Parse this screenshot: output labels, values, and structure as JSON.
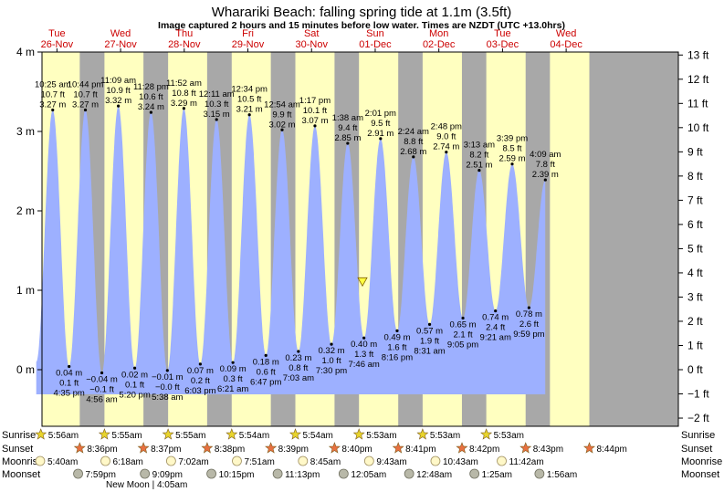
{
  "title": "Wharariki Beach: falling  spring tide at 1.1m (3.5ft)",
  "subtitle": "Image captured 2 hours and 15 minutes before low water. Times are NZDT (UTC +13.0hrs)",
  "chart_data": {
    "type": "area",
    "y_unit_left": "m",
    "y_unit_right": "ft",
    "ylim_m": [
      -0.5,
      4.0
    ],
    "left_ticks": [
      "4 m",
      "3 m",
      "2 m",
      "1 m",
      "0 m"
    ],
    "right_ticks": [
      "13 ft",
      "12 ft",
      "11 ft",
      "10 ft",
      "9 ft",
      "8 ft",
      "7 ft",
      "6 ft",
      "5 ft",
      "4 ft",
      "3 ft",
      "2 ft",
      "1 ft",
      "0 ft",
      "−1 ft",
      "−2 ft"
    ],
    "days": [
      {
        "dow": "Tue",
        "date": "26-Nov"
      },
      {
        "dow": "Wed",
        "date": "27-Nov"
      },
      {
        "dow": "Thu",
        "date": "28-Nov"
      },
      {
        "dow": "Fri",
        "date": "29-Nov"
      },
      {
        "dow": "Sat",
        "date": "30-Nov"
      },
      {
        "dow": "Sun",
        "date": "01-Dec"
      },
      {
        "dow": "Mon",
        "date": "02-Dec"
      },
      {
        "dow": "Tue",
        "date": "03-Dec"
      },
      {
        "dow": "Wed",
        "date": "04-Dec"
      }
    ],
    "current_level_m": 1.1,
    "tides": [
      {
        "type": "high",
        "time": "10:25 am",
        "ft": "10.7 ft",
        "m": 3.27,
        "m_label": "3.27 m"
      },
      {
        "type": "low",
        "time": "4:35 pm",
        "ft": "0.1 ft",
        "m": 0.04,
        "m_label": "0.04 m"
      },
      {
        "type": "high",
        "time": "10:44 pm",
        "ft": "10.7 ft",
        "m": 3.27,
        "m_label": "3.27 m"
      },
      {
        "type": "low",
        "time": "4:56 am",
        "ft": "−0.1 ft",
        "m": -0.04,
        "m_label": "−0.04 m"
      },
      {
        "type": "high",
        "time": "11:09 am",
        "ft": "10.9 ft",
        "m": 3.32,
        "m_label": "3.32 m"
      },
      {
        "type": "low",
        "time": "5:20 pm",
        "ft": "0.1 ft",
        "m": 0.02,
        "m_label": "0.02 m"
      },
      {
        "type": "high",
        "time": "11:28 pm",
        "ft": "10.6 ft",
        "m": 3.24,
        "m_label": "3.24 m"
      },
      {
        "type": "low",
        "time": "5:38 am",
        "ft": "−0.0 ft",
        "m": -0.01,
        "m_label": "−0.01 m"
      },
      {
        "type": "high",
        "time": "11:52 am",
        "ft": "10.8 ft",
        "m": 3.29,
        "m_label": "3.29 m"
      },
      {
        "type": "low",
        "time": "6:03 pm",
        "ft": "0.2 ft",
        "m": 0.07,
        "m_label": "0.07 m"
      },
      {
        "type": "high",
        "time": "12:11 am",
        "ft": "10.3 ft",
        "m": 3.15,
        "m_label": "3.15 m"
      },
      {
        "type": "low",
        "time": "6:21 am",
        "ft": "0.3 ft",
        "m": 0.09,
        "m_label": "0.09 m"
      },
      {
        "type": "high",
        "time": "12:34 pm",
        "ft": "10.5 ft",
        "m": 3.21,
        "m_label": "3.21 m"
      },
      {
        "type": "low",
        "time": "6:47 pm",
        "ft": "0.6 ft",
        "m": 0.18,
        "m_label": "0.18 m"
      },
      {
        "type": "high",
        "time": "12:54 am",
        "ft": "9.9 ft",
        "m": 3.02,
        "m_label": "3.02 m"
      },
      {
        "type": "low",
        "time": "7:03 am",
        "ft": "0.8 ft",
        "m": 0.23,
        "m_label": "0.23 m"
      },
      {
        "type": "high",
        "time": "1:17 pm",
        "ft": "10.1 ft",
        "m": 3.07,
        "m_label": "3.07 m"
      },
      {
        "type": "low",
        "time": "7:30 pm",
        "ft": "1.0 ft",
        "m": 0.32,
        "m_label": "0.32 m"
      },
      {
        "type": "high",
        "time": "1:38 am",
        "ft": "9.4 ft",
        "m": 2.85,
        "m_label": "2.85 m"
      },
      {
        "type": "low",
        "time": "7:46 am",
        "ft": "1.3 ft",
        "m": 0.4,
        "m_label": "0.40 m"
      },
      {
        "type": "high",
        "time": "2:01 pm",
        "ft": "9.5 ft",
        "m": 2.91,
        "m_label": "2.91 m"
      },
      {
        "type": "low",
        "time": "8:16 pm",
        "ft": "1.6 ft",
        "m": 0.49,
        "m_label": "0.49 m"
      },
      {
        "type": "high",
        "time": "2:24 am",
        "ft": "8.8 ft",
        "m": 2.68,
        "m_label": "2.68 m"
      },
      {
        "type": "low",
        "time": "8:31 am",
        "ft": "1.9 ft",
        "m": 0.57,
        "m_label": "0.57 m"
      },
      {
        "type": "high",
        "time": "2:48 pm",
        "ft": "9.0 ft",
        "m": 2.74,
        "m_label": "2.74 m"
      },
      {
        "type": "low",
        "time": "9:05 pm",
        "ft": "2.1 ft",
        "m": 0.65,
        "m_label": "0.65 m"
      },
      {
        "type": "high",
        "time": "3:13 am",
        "ft": "8.2 ft",
        "m": 2.51,
        "m_label": "2.51 m"
      },
      {
        "type": "low",
        "time": "9:21 am",
        "ft": "2.4 ft",
        "m": 0.74,
        "m_label": "0.74 m"
      },
      {
        "type": "high",
        "time": "3:39 pm",
        "ft": "8.5 ft",
        "m": 2.59,
        "m_label": "2.59 m"
      },
      {
        "type": "low",
        "time": "9:59 pm",
        "ft": "2.6 ft",
        "m": 0.78,
        "m_label": "0.78 m"
      },
      {
        "type": "high",
        "time": "4:09 am",
        "ft": "7.8 ft",
        "m": 2.39,
        "m_label": "2.39 m"
      }
    ],
    "sunrise": [
      "5:56am",
      "5:55am",
      "5:55am",
      "5:54am",
      "5:54am",
      "5:53am",
      "5:53am",
      "5:53am"
    ],
    "sunset": [
      "8:36pm",
      "8:37pm",
      "8:38pm",
      "8:39pm",
      "8:40pm",
      "8:41pm",
      "8:42pm",
      "8:43pm",
      "8:44pm"
    ],
    "moonrise": [
      "5:40am",
      "6:18am",
      "7:02am",
      "7:51am",
      "8:45am",
      "9:43am",
      "10:43am",
      "11:42am"
    ],
    "moonset": [
      "7:59pm",
      "9:09pm",
      "10:15pm",
      "11:13pm",
      "12:05am",
      "12:48am",
      "1:25am",
      "1:56am"
    ],
    "moon_phase_note": "New Moon | 4:05am",
    "row_labels": {
      "sunrise": "Sunrise",
      "sunset": "Sunset",
      "moonrise": "Moonrise",
      "moonset": "Moonset"
    },
    "colors": {
      "water": "#9db0ff",
      "day": "#ffffc0",
      "night": "#a8a8a8",
      "sun": "#e8d42c",
      "sunset_star": "#e87040",
      "moon": "#fff8c8",
      "moonset": "#b8b8a8"
    }
  }
}
